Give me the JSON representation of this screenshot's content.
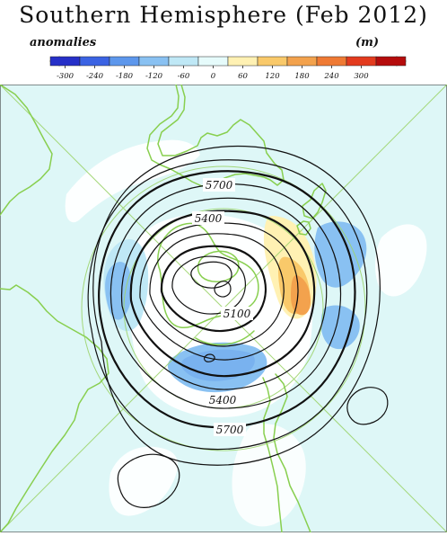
{
  "figure": {
    "title": "Southern Hemisphere (Feb 2012)",
    "legend": {
      "left_label": "anomalies",
      "right_label": "(m)",
      "ticks": [
        "-300",
        "-240",
        "-180",
        "-120",
        "-60",
        "0",
        "60",
        "120",
        "180",
        "240",
        "300"
      ],
      "palette": [
        "#2630c8",
        "#3b63e3",
        "#5d97ec",
        "#89c1f2",
        "#bfe8f6",
        "#e6fbfb",
        "#fff1b3",
        "#f9c96a",
        "#f3a24d",
        "#ef7a34",
        "#e33b1e",
        "#b50c0c"
      ]
    },
    "map": {
      "contour_labels": [
        "5700",
        "5400",
        "5100",
        "5400",
        "5700"
      ],
      "background_color": "#def7f7",
      "coast_color": "#88cf4f",
      "contour_color": "#111111"
    }
  }
}
